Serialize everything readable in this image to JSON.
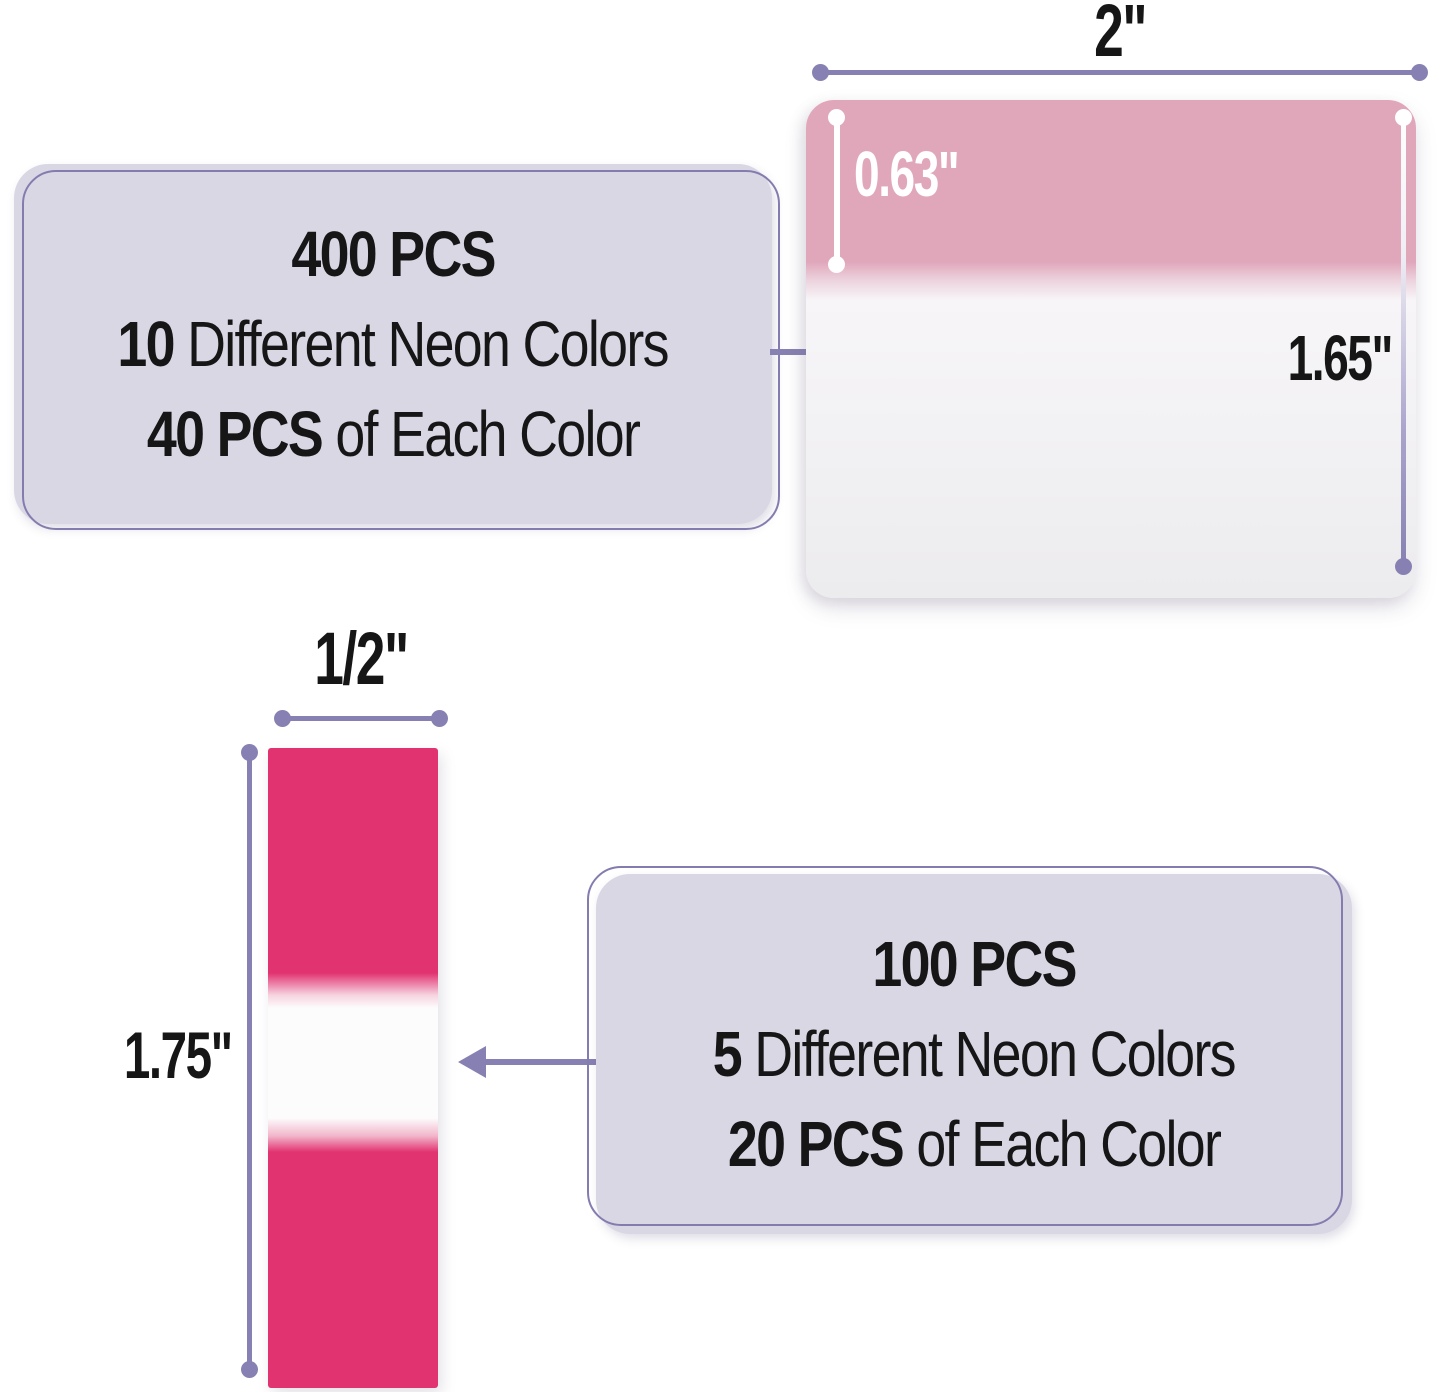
{
  "annotation_400": {
    "line1": "400 PCS",
    "line2_bold": "10",
    "line2_rest": " Different Neon Colors",
    "line3_bold": "40 PCS",
    "line3_rest": " of Each Color"
  },
  "annotation_100": {
    "line1": "100 PCS",
    "line2_bold": "5",
    "line2_rest": " Different Neon Colors",
    "line3_bold": "20 PCS",
    "line3_rest": " of Each Color"
  },
  "large_tab": {
    "width_label": "2\"",
    "header_height_label": "0.63\"",
    "total_height_label": "1.65\""
  },
  "small_tab": {
    "width_label": "1/2\"",
    "height_label": "1.75\""
  },
  "colors": {
    "accent_purple": "#8781b3",
    "note_fill": "#dad7e5",
    "note_border": "#837daf",
    "muted_pink": "#e0a7bb",
    "hot_pink": "#e23371",
    "tab_body": "#f2f1f3",
    "text": "#161616"
  }
}
